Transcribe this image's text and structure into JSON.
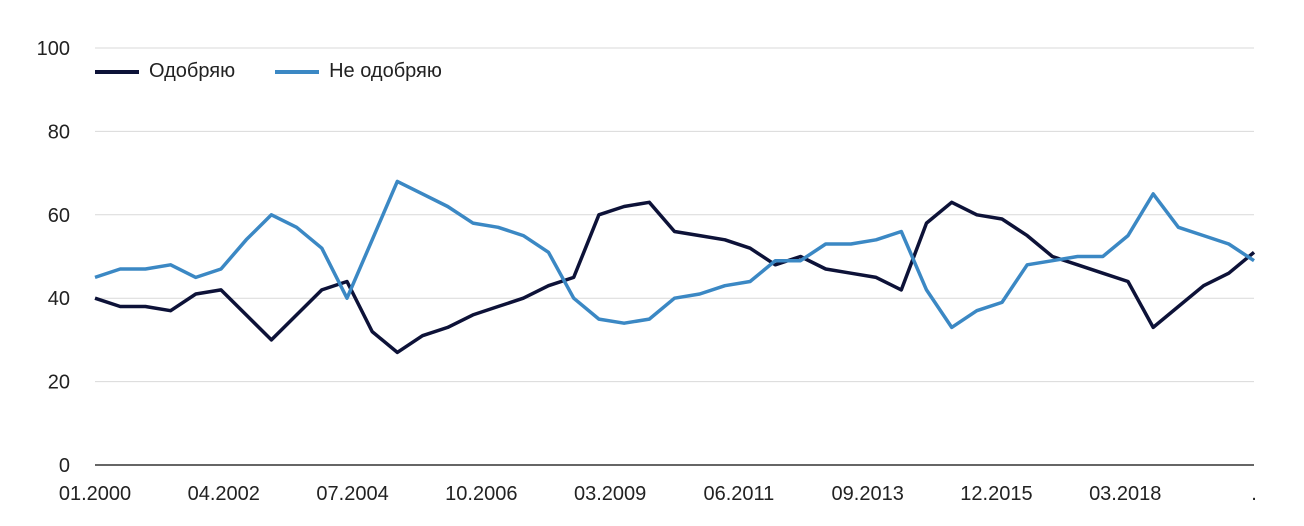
{
  "chart_data": {
    "type": "line",
    "title": "",
    "xlabel": "",
    "ylabel": "",
    "ylim": [
      0,
      100
    ],
    "y_ticks": [
      0,
      20,
      40,
      60,
      80,
      100
    ],
    "x_tick_labels": [
      "01.2000",
      "04.2002",
      "07.2004",
      "10.2006",
      "03.2009",
      "06.2011",
      "09.2013",
      "12.2015",
      "03.2018",
      "."
    ],
    "grid": "horizontal",
    "legend_position": "top-left",
    "x": [
      "01.2000",
      "07.2000",
      "01.2001",
      "07.2001",
      "01.2002",
      "04.2002",
      "07.2002",
      "01.2003",
      "07.2003",
      "01.2004",
      "04.2004",
      "07.2004",
      "01.2005",
      "07.2005",
      "01.2006",
      "07.2006",
      "10.2006",
      "01.2007",
      "07.2007",
      "01.2008",
      "07.2008",
      "01.2009",
      "03.2009",
      "07.2009",
      "01.2010",
      "07.2010",
      "01.2011",
      "06.2011",
      "01.2012",
      "07.2012",
      "01.2013",
      "06.2013",
      "09.2013",
      "01.2014",
      "07.2014",
      "01.2015",
      "07.2015",
      "12.2015",
      "07.2016",
      "01.2017",
      "07.2017",
      "03.2018",
      "07.2018",
      "01.2019",
      "07.2019",
      "01.2020",
      "07.2020"
    ],
    "series": [
      {
        "name": "Одобряю",
        "color": "#0d1238",
        "values": [
          40,
          38,
          38,
          37,
          41,
          42,
          36,
          30,
          36,
          42,
          44,
          32,
          27,
          31,
          33,
          36,
          38,
          40,
          43,
          45,
          60,
          62,
          63,
          56,
          55,
          54,
          52,
          48,
          50,
          47,
          46,
          45,
          42,
          58,
          63,
          60,
          59,
          55,
          50,
          48,
          46,
          44,
          33,
          38,
          43,
          46,
          51
        ]
      },
      {
        "name": "Не одобряю",
        "color": "#3b88c4",
        "values": [
          45,
          47,
          47,
          48,
          45,
          47,
          54,
          60,
          57,
          52,
          40,
          54,
          68,
          65,
          62,
          58,
          57,
          55,
          51,
          40,
          35,
          34,
          35,
          40,
          41,
          43,
          44,
          49,
          49,
          53,
          53,
          54,
          56,
          42,
          33,
          37,
          39,
          48,
          49,
          50,
          50,
          55,
          65,
          57,
          55,
          53,
          49
        ]
      }
    ]
  }
}
